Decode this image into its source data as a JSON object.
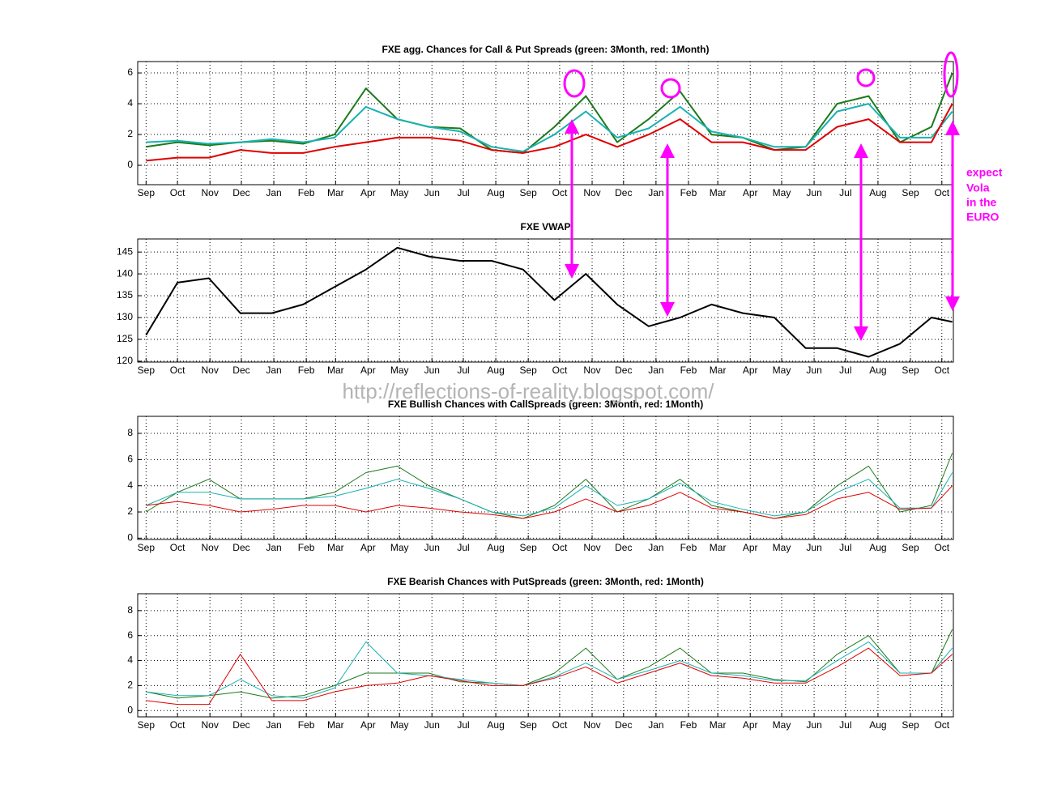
{
  "chart_data": [
    {
      "type": "line",
      "title": "FXE agg. Chances for Call & Put Spreads (green: 3Month, red: 1Month)",
      "x": [
        0,
        30,
        60,
        90,
        120,
        150,
        180,
        210,
        240,
        270,
        300,
        330,
        360,
        390,
        420,
        450,
        480,
        510,
        540,
        570,
        600,
        630,
        660,
        690,
        720,
        750,
        770
      ],
      "xlim": [
        -8,
        771
      ],
      "xticks": [
        {
          "value": 0,
          "label": "Sep"
        },
        {
          "value": 30,
          "label": "Oct"
        },
        {
          "value": 61,
          "label": "Nov"
        },
        {
          "value": 91,
          "label": "Dec"
        },
        {
          "value": 122,
          "label": "Jan"
        },
        {
          "value": 153,
          "label": "Feb"
        },
        {
          "value": 181,
          "label": "Mar"
        },
        {
          "value": 212,
          "label": "Apr"
        },
        {
          "value": 242,
          "label": "May"
        },
        {
          "value": 273,
          "label": "Jun"
        },
        {
          "value": 303,
          "label": "Jul"
        },
        {
          "value": 334,
          "label": "Aug"
        },
        {
          "value": 365,
          "label": "Sep"
        },
        {
          "value": 395,
          "label": "Oct"
        },
        {
          "value": 426,
          "label": "Nov"
        },
        {
          "value": 456,
          "label": "Dec"
        },
        {
          "value": 487,
          "label": "Jan"
        },
        {
          "value": 518,
          "label": "Feb"
        },
        {
          "value": 546,
          "label": "Mar"
        },
        {
          "value": 577,
          "label": "Apr"
        },
        {
          "value": 607,
          "label": "May"
        },
        {
          "value": 638,
          "label": "Jun"
        },
        {
          "value": 668,
          "label": "Jul"
        },
        {
          "value": 699,
          "label": "Aug"
        },
        {
          "value": 730,
          "label": "Sep"
        },
        {
          "value": 760,
          "label": "Oct"
        }
      ],
      "ylim": [
        -1.26,
        6.74
      ],
      "yticks": [
        0,
        2,
        4,
        6
      ],
      "grid": true,
      "series": [
        {
          "color": "#1d7a1d",
          "values": [
            1.2,
            1.5,
            1.3,
            1.5,
            1.6,
            1.4,
            2.0,
            5.0,
            3.0,
            2.5,
            2.4,
            1.0,
            0.8,
            2.5,
            4.5,
            1.5,
            3.0,
            4.8,
            2.0,
            1.8,
            1.0,
            1.2,
            4.0,
            4.5,
            1.5,
            2.5,
            6.0
          ]
        },
        {
          "color": "#1ab2b2",
          "values": [
            1.5,
            1.6,
            1.4,
            1.5,
            1.7,
            1.5,
            1.8,
            3.8,
            3.0,
            2.5,
            2.2,
            1.2,
            0.9,
            2.0,
            3.5,
            1.8,
            2.4,
            3.8,
            2.2,
            1.8,
            1.2,
            1.2,
            3.5,
            4.0,
            1.8,
            1.8,
            3.5
          ]
        },
        {
          "color": "#e00000",
          "values": [
            0.3,
            0.5,
            0.5,
            1.0,
            0.8,
            0.8,
            1.2,
            1.5,
            1.8,
            1.8,
            1.6,
            1.0,
            0.8,
            1.2,
            2.0,
            1.2,
            2.0,
            3.0,
            1.5,
            1.5,
            1.0,
            1.0,
            2.5,
            3.0,
            1.5,
            1.5,
            4.0
          ]
        }
      ]
    },
    {
      "type": "line",
      "title": "FXE VWAP",
      "x": [
        0,
        30,
        60,
        90,
        120,
        150,
        180,
        210,
        240,
        270,
        300,
        330,
        360,
        390,
        420,
        450,
        480,
        510,
        540,
        570,
        600,
        630,
        660,
        690,
        720,
        750,
        770
      ],
      "xlim": [
        -8,
        771
      ],
      "xticks": [
        {
          "value": 0,
          "label": "Sep"
        },
        {
          "value": 30,
          "label": "Oct"
        },
        {
          "value": 61,
          "label": "Nov"
        },
        {
          "value": 91,
          "label": "Dec"
        },
        {
          "value": 122,
          "label": "Jan"
        },
        {
          "value": 153,
          "label": "Feb"
        },
        {
          "value": 181,
          "label": "Mar"
        },
        {
          "value": 212,
          "label": "Apr"
        },
        {
          "value": 242,
          "label": "May"
        },
        {
          "value": 273,
          "label": "Jun"
        },
        {
          "value": 303,
          "label": "Jul"
        },
        {
          "value": 334,
          "label": "Aug"
        },
        {
          "value": 365,
          "label": "Sep"
        },
        {
          "value": 395,
          "label": "Oct"
        },
        {
          "value": 426,
          "label": "Nov"
        },
        {
          "value": 456,
          "label": "Dec"
        },
        {
          "value": 487,
          "label": "Jan"
        },
        {
          "value": 518,
          "label": "Feb"
        },
        {
          "value": 546,
          "label": "Mar"
        },
        {
          "value": 577,
          "label": "Apr"
        },
        {
          "value": 607,
          "label": "May"
        },
        {
          "value": 638,
          "label": "Jun"
        },
        {
          "value": 668,
          "label": "Jul"
        },
        {
          "value": 699,
          "label": "Aug"
        },
        {
          "value": 730,
          "label": "Sep"
        },
        {
          "value": 760,
          "label": "Oct"
        }
      ],
      "ylim": [
        119.8,
        148
      ],
      "yticks": [
        120,
        125,
        130,
        135,
        140,
        145
      ],
      "grid": true,
      "series": [
        {
          "color": "#000000",
          "values": [
            126,
            138,
            139,
            131,
            131,
            133,
            137,
            141,
            146,
            144,
            143,
            143,
            141,
            134,
            140,
            133,
            128,
            130,
            133,
            131,
            130,
            123,
            123,
            121,
            124,
            130,
            129
          ]
        }
      ]
    },
    {
      "type": "line",
      "title": "FXE Bullish Chances with CallSpreads (green: 3Month, red: 1Month)",
      "x": [
        0,
        30,
        60,
        90,
        120,
        150,
        180,
        210,
        240,
        270,
        300,
        330,
        360,
        390,
        420,
        450,
        480,
        510,
        540,
        570,
        600,
        630,
        660,
        690,
        720,
        750,
        770
      ],
      "xlim": [
        -8,
        771
      ],
      "xticks": [
        {
          "value": 0,
          "label": "Sep"
        },
        {
          "value": 30,
          "label": "Oct"
        },
        {
          "value": 61,
          "label": "Nov"
        },
        {
          "value": 91,
          "label": "Dec"
        },
        {
          "value": 122,
          "label": "Jan"
        },
        {
          "value": 153,
          "label": "Feb"
        },
        {
          "value": 181,
          "label": "Mar"
        },
        {
          "value": 212,
          "label": "Apr"
        },
        {
          "value": 242,
          "label": "May"
        },
        {
          "value": 273,
          "label": "Jun"
        },
        {
          "value": 303,
          "label": "Jul"
        },
        {
          "value": 334,
          "label": "Aug"
        },
        {
          "value": 365,
          "label": "Sep"
        },
        {
          "value": 395,
          "label": "Oct"
        },
        {
          "value": 426,
          "label": "Nov"
        },
        {
          "value": 456,
          "label": "Dec"
        },
        {
          "value": 487,
          "label": "Jan"
        },
        {
          "value": 518,
          "label": "Feb"
        },
        {
          "value": 546,
          "label": "Mar"
        },
        {
          "value": 577,
          "label": "Apr"
        },
        {
          "value": 607,
          "label": "May"
        },
        {
          "value": 638,
          "label": "Jun"
        },
        {
          "value": 668,
          "label": "Jul"
        },
        {
          "value": 699,
          "label": "Aug"
        },
        {
          "value": 730,
          "label": "Sep"
        },
        {
          "value": 760,
          "label": "Oct"
        }
      ],
      "ylim": [
        -0.1,
        9.3
      ],
      "yticks": [
        0,
        2,
        4,
        6,
        8
      ],
      "grid": true,
      "series": [
        {
          "color": "#1d7a1d",
          "values": [
            2.0,
            3.5,
            4.5,
            3.0,
            3.0,
            3.0,
            3.5,
            5.0,
            5.5,
            4.0,
            3.0,
            2.0,
            1.5,
            2.5,
            4.5,
            2.0,
            3.0,
            4.5,
            2.5,
            2.0,
            1.5,
            2.0,
            4.0,
            5.5,
            2.0,
            2.5,
            6.5
          ]
        },
        {
          "color": "#1ab2b2",
          "values": [
            2.5,
            3.5,
            3.5,
            3.0,
            3.0,
            3.0,
            3.2,
            3.8,
            4.5,
            3.8,
            3.0,
            2.0,
            1.7,
            2.3,
            4.0,
            2.5,
            3.0,
            4.2,
            2.8,
            2.2,
            1.7,
            2.0,
            3.5,
            4.5,
            2.3,
            2.3,
            5.0
          ]
        },
        {
          "color": "#e00000",
          "values": [
            2.5,
            2.8,
            2.5,
            2.0,
            2.2,
            2.5,
            2.5,
            2.0,
            2.5,
            2.3,
            2.0,
            1.8,
            1.5,
            2.0,
            3.0,
            2.0,
            2.5,
            3.5,
            2.3,
            2.0,
            1.5,
            1.8,
            3.0,
            3.5,
            2.2,
            2.3,
            4.0
          ]
        }
      ]
    },
    {
      "type": "line",
      "title": "FXE Bearish Chances with PutSpreads (green: 3Month, red: 1Month)",
      "x": [
        0,
        30,
        60,
        90,
        120,
        150,
        180,
        210,
        240,
        270,
        300,
        330,
        360,
        390,
        420,
        450,
        480,
        510,
        540,
        570,
        600,
        630,
        660,
        690,
        720,
        750,
        770
      ],
      "xlim": [
        -8,
        771
      ],
      "xticks": [
        {
          "value": 0,
          "label": "Sep"
        },
        {
          "value": 30,
          "label": "Oct"
        },
        {
          "value": 61,
          "label": "Nov"
        },
        {
          "value": 91,
          "label": "Dec"
        },
        {
          "value": 122,
          "label": "Jan"
        },
        {
          "value": 153,
          "label": "Feb"
        },
        {
          "value": 181,
          "label": "Mar"
        },
        {
          "value": 212,
          "label": "Apr"
        },
        {
          "value": 242,
          "label": "May"
        },
        {
          "value": 273,
          "label": "Jun"
        },
        {
          "value": 303,
          "label": "Jul"
        },
        {
          "value": 334,
          "label": "Aug"
        },
        {
          "value": 365,
          "label": "Sep"
        },
        {
          "value": 395,
          "label": "Oct"
        },
        {
          "value": 426,
          "label": "Nov"
        },
        {
          "value": 456,
          "label": "Dec"
        },
        {
          "value": 487,
          "label": "Jan"
        },
        {
          "value": 518,
          "label": "Feb"
        },
        {
          "value": 546,
          "label": "Mar"
        },
        {
          "value": 577,
          "label": "Apr"
        },
        {
          "value": 607,
          "label": "May"
        },
        {
          "value": 638,
          "label": "Jun"
        },
        {
          "value": 668,
          "label": "Jul"
        },
        {
          "value": 699,
          "label": "Aug"
        },
        {
          "value": 730,
          "label": "Sep"
        },
        {
          "value": 760,
          "label": "Oct"
        }
      ],
      "ylim": [
        -0.5,
        9.35
      ],
      "yticks": [
        0,
        2,
        4,
        6,
        8
      ],
      "grid": true,
      "series": [
        {
          "color": "#1d7a1d",
          "values": [
            1.5,
            1.0,
            1.2,
            1.5,
            1.0,
            1.2,
            2.0,
            3.0,
            3.0,
            3.0,
            2.3,
            2.2,
            2.0,
            3.0,
            5.0,
            2.5,
            3.5,
            5.0,
            3.0,
            3.0,
            2.5,
            2.3,
            4.5,
            6.0,
            3.0,
            3.0,
            6.5
          ]
        },
        {
          "color": "#1ab2b2",
          "values": [
            1.5,
            1.2,
            1.2,
            2.5,
            1.2,
            1.0,
            1.8,
            5.5,
            3.0,
            2.8,
            2.5,
            2.2,
            2.0,
            2.7,
            3.8,
            2.5,
            3.2,
            4.0,
            3.0,
            2.8,
            2.4,
            2.4,
            4.0,
            5.5,
            3.0,
            3.0,
            5.0
          ]
        },
        {
          "color": "#e00000",
          "values": [
            0.8,
            0.5,
            0.5,
            4.5,
            0.8,
            0.8,
            1.5,
            2.0,
            2.2,
            2.8,
            2.4,
            2.0,
            2.0,
            2.6,
            3.5,
            2.2,
            3.0,
            3.8,
            2.8,
            2.6,
            2.2,
            2.2,
            3.5,
            5.0,
            2.8,
            3.0,
            4.5
          ]
        }
      ]
    }
  ],
  "annotations": {
    "watermark": "http://reflections-of-reality.blogspot.com/",
    "note": [
      "expect",
      "Vola",
      "in the",
      "EURO"
    ]
  }
}
